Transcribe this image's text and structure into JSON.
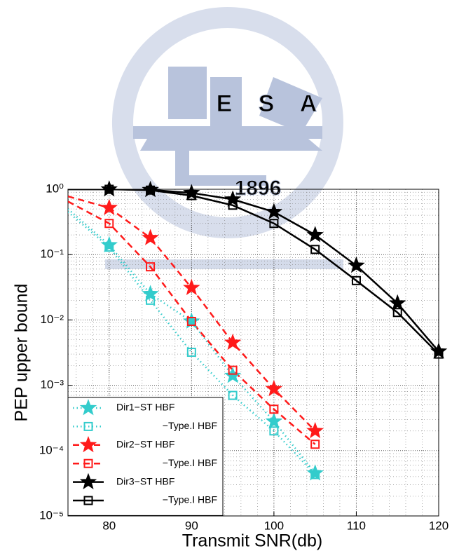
{
  "chart_data": {
    "type": "line",
    "watermark": {
      "letters": [
        "E",
        "S",
        "A"
      ],
      "year": "1896"
    },
    "xlabel": "Transmit SNR(db)",
    "ylabel": "PEP upper bound",
    "xlim": [
      75,
      120
    ],
    "xticks": [
      80,
      90,
      100,
      110,
      120
    ],
    "ylim": [
      1e-05,
      1
    ],
    "yticks": [
      {
        "value": 1,
        "label": "10⁰"
      },
      {
        "value": 0.1,
        "label": "10⁻¹"
      },
      {
        "value": 0.01,
        "label": "10⁻²"
      },
      {
        "value": 0.001,
        "label": "10⁻³"
      },
      {
        "value": 0.0001,
        "label": "10⁻⁴"
      },
      {
        "value": 1e-05,
        "label": "10⁻⁵"
      }
    ],
    "log_y": true,
    "grid": true,
    "legend": "lower left",
    "series": [
      {
        "name": "Dir1−ST HBF",
        "color": "#33cccc",
        "dash": "dotted",
        "marker": "star",
        "x": [
          75,
          80,
          85,
          90,
          95,
          100,
          105
        ],
        "values": [
          0.5,
          0.14,
          0.025,
          0.0095,
          0.0014,
          0.00028,
          4.5e-05
        ]
      },
      {
        "name": "−Type.I HBF",
        "color": "#33cccc",
        "dash": "dotted",
        "marker": "square",
        "x": [
          75,
          80,
          85,
          90,
          95,
          100,
          105
        ],
        "values": [
          0.45,
          0.13,
          0.02,
          0.0032,
          0.0007,
          0.0002,
          4.3e-05
        ]
      },
      {
        "name": "Dir2−ST HBF",
        "color": "#ff1a1a",
        "dash": "dashed",
        "marker": "star",
        "x": [
          75,
          80,
          85,
          90,
          95,
          100,
          105
        ],
        "values": [
          0.78,
          0.52,
          0.18,
          0.031,
          0.0045,
          0.00088,
          0.0002
        ]
      },
      {
        "name": "−Type.I HBF",
        "color": "#ff1a1a",
        "dash": "dashed",
        "marker": "square",
        "x": [
          75,
          80,
          85,
          90,
          95,
          100,
          105
        ],
        "values": [
          0.65,
          0.3,
          0.065,
          0.0095,
          0.0017,
          0.00043,
          0.000125
        ]
      },
      {
        "name": "Dir3−ST HBF",
        "color": "#000000",
        "dash": "solid",
        "marker": "star",
        "x": [
          75,
          80,
          85,
          90,
          95,
          100,
          105,
          110,
          115,
          120
        ],
        "values": [
          1,
          1,
          0.98,
          0.88,
          0.7,
          0.45,
          0.2,
          0.068,
          0.018,
          0.0033
        ]
      },
      {
        "name": "−Type.I HBF",
        "color": "#000000",
        "dash": "solid",
        "marker": "square",
        "x": [
          75,
          80,
          85,
          90,
          95,
          100,
          105,
          110,
          115,
          120
        ],
        "values": [
          1,
          1,
          0.97,
          0.8,
          0.57,
          0.3,
          0.12,
          0.04,
          0.013,
          0.003
        ]
      }
    ]
  }
}
